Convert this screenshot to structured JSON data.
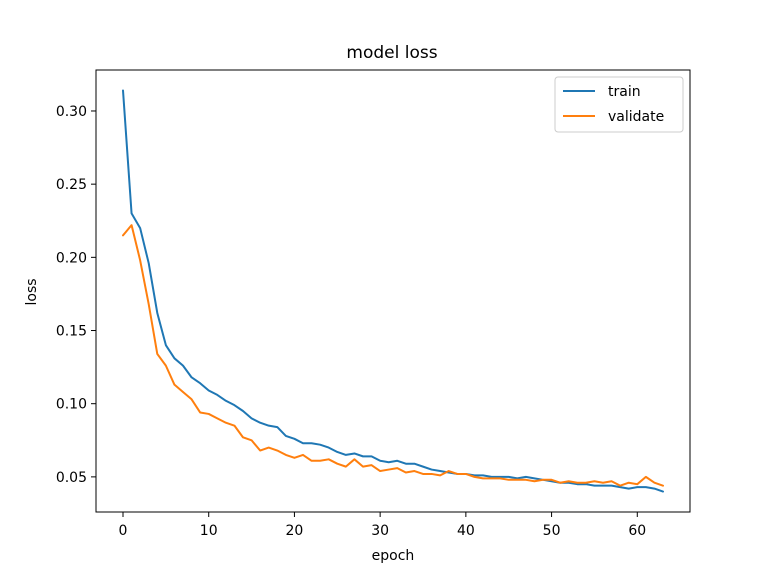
{
  "chart_data": {
    "type": "line",
    "title": "model loss",
    "xlabel": "epoch",
    "ylabel": "loss",
    "xlim": [
      -3.15,
      66.15
    ],
    "ylim": [
      0.026,
      0.328
    ],
    "xticks": [
      0,
      10,
      20,
      30,
      40,
      50,
      60
    ],
    "yticks": [
      0.05,
      0.1,
      0.15,
      0.2,
      0.25,
      0.3
    ],
    "ytick_labels": [
      "0.05",
      "0.10",
      "0.15",
      "0.20",
      "0.25",
      "0.30"
    ],
    "grid": false,
    "legend_position": "top-right",
    "x": [
      0,
      1,
      2,
      3,
      4,
      5,
      6,
      7,
      8,
      9,
      10,
      11,
      12,
      13,
      14,
      15,
      16,
      17,
      18,
      19,
      20,
      21,
      22,
      23,
      24,
      25,
      26,
      27,
      28,
      29,
      30,
      31,
      32,
      33,
      34,
      35,
      36,
      37,
      38,
      39,
      40,
      41,
      42,
      43,
      44,
      45,
      46,
      47,
      48,
      49,
      50,
      51,
      52,
      53,
      54,
      55,
      56,
      57,
      58,
      59,
      60,
      61,
      62,
      63
    ],
    "series": [
      {
        "name": "train",
        "color": "#1f77b4",
        "values": [
          0.314,
          0.23,
          0.22,
          0.196,
          0.162,
          0.14,
          0.131,
          0.126,
          0.118,
          0.114,
          0.109,
          0.106,
          0.102,
          0.099,
          0.095,
          0.09,
          0.087,
          0.085,
          0.084,
          0.078,
          0.076,
          0.073,
          0.073,
          0.072,
          0.07,
          0.067,
          0.065,
          0.066,
          0.064,
          0.064,
          0.061,
          0.06,
          0.061,
          0.059,
          0.059,
          0.057,
          0.055,
          0.054,
          0.053,
          0.052,
          0.052,
          0.051,
          0.051,
          0.05,
          0.05,
          0.05,
          0.049,
          0.05,
          0.049,
          0.048,
          0.047,
          0.046,
          0.046,
          0.045,
          0.045,
          0.044,
          0.044,
          0.044,
          0.043,
          0.042,
          0.043,
          0.043,
          0.042,
          0.04
        ]
      },
      {
        "name": "validate",
        "color": "#ff7f0e",
        "values": [
          0.215,
          0.222,
          0.198,
          0.168,
          0.134,
          0.126,
          0.113,
          0.108,
          0.103,
          0.094,
          0.093,
          0.09,
          0.087,
          0.085,
          0.077,
          0.075,
          0.068,
          0.07,
          0.068,
          0.065,
          0.063,
          0.065,
          0.061,
          0.061,
          0.062,
          0.059,
          0.057,
          0.062,
          0.057,
          0.058,
          0.054,
          0.055,
          0.056,
          0.053,
          0.054,
          0.052,
          0.052,
          0.051,
          0.054,
          0.052,
          0.052,
          0.05,
          0.049,
          0.049,
          0.049,
          0.048,
          0.048,
          0.048,
          0.047,
          0.048,
          0.048,
          0.046,
          0.047,
          0.046,
          0.046,
          0.047,
          0.046,
          0.047,
          0.044,
          0.046,
          0.045,
          0.05,
          0.046,
          0.044
        ]
      }
    ]
  }
}
